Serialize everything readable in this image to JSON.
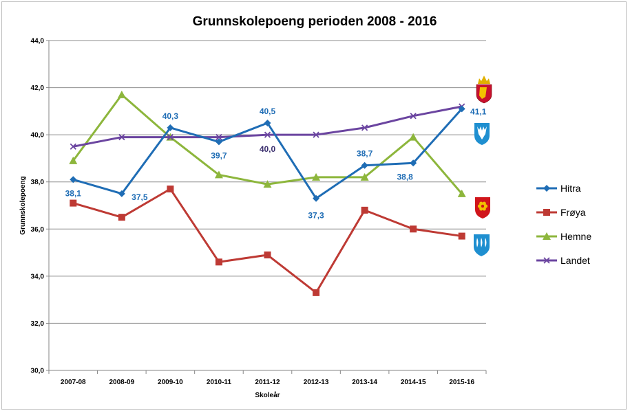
{
  "chart_data": {
    "type": "line",
    "title": "Grunnskolepoeng perioden 2008 - 2016",
    "xlabel": "Skoleår",
    "ylabel": "Grunnskolepoeng",
    "categories": [
      "2007-08",
      "2008-09",
      "2009-10",
      "2010-11",
      "2011-12",
      "2012-13",
      "2013-14",
      "2014-15",
      "2015-16"
    ],
    "ylim": [
      30,
      44
    ],
    "yticks": [
      "30,0",
      "32,0",
      "34,0",
      "36,0",
      "38,0",
      "40,0",
      "42,0",
      "44,0"
    ],
    "grid": true,
    "legend_position": "right",
    "series": [
      {
        "name": "Hitra",
        "color": "#1f6db5",
        "marker": "diamond",
        "values": [
          38.1,
          37.5,
          40.3,
          39.7,
          40.5,
          37.3,
          38.7,
          38.8,
          41.1
        ]
      },
      {
        "name": "Frøya",
        "color": "#be3a34",
        "marker": "square",
        "values": [
          37.1,
          36.5,
          37.7,
          34.6,
          34.9,
          33.3,
          36.8,
          36.0,
          35.7
        ]
      },
      {
        "name": "Hemne",
        "color": "#8db63c",
        "marker": "triangle",
        "values": [
          38.9,
          41.7,
          39.9,
          38.3,
          37.9,
          38.2,
          38.2,
          39.9,
          37.5
        ]
      },
      {
        "name": "Landet",
        "color": "#6b45a0",
        "marker": "x",
        "values": [
          39.5,
          39.9,
          39.9,
          39.9,
          40.0,
          40.0,
          40.3,
          40.8,
          41.2
        ]
      }
    ],
    "data_labels": [
      {
        "series": "Hitra",
        "index": 0,
        "text": "38,1"
      },
      {
        "series": "Hitra",
        "index": 1,
        "text": "37,5"
      },
      {
        "series": "Hitra",
        "index": 2,
        "text": "40,3"
      },
      {
        "series": "Hitra",
        "index": 3,
        "text": "39,7"
      },
      {
        "series": "Hitra",
        "index": 4,
        "text": "40,5"
      },
      {
        "series": "Hitra",
        "index": 5,
        "text": "37,3"
      },
      {
        "series": "Hitra",
        "index": 6,
        "text": "38,7"
      },
      {
        "series": "Hitra",
        "index": 7,
        "text": "38,8"
      },
      {
        "series": "Hitra",
        "index": 8,
        "text": "41,1"
      },
      {
        "series": "Landet",
        "index": 4,
        "text": "40,0"
      }
    ],
    "emblems": [
      {
        "name": "norway-coat-of-arms-icon",
        "color": "#c8102e"
      },
      {
        "name": "hitra-coat-of-arms-icon",
        "color": "#1f8fd0"
      },
      {
        "name": "froya-coat-of-arms-icon",
        "color": "#d0151b"
      },
      {
        "name": "hemne-coat-of-arms-icon",
        "color": "#1f8fd0"
      }
    ]
  }
}
